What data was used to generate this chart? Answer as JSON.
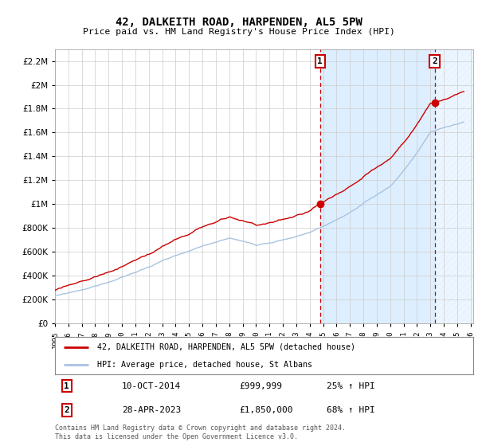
{
  "title": "42, DALKEITH ROAD, HARPENDEN, AL5 5PW",
  "subtitle": "Price paid vs. HM Land Registry's House Price Index (HPI)",
  "ylim": [
    0,
    2300000
  ],
  "yticks": [
    0,
    200000,
    400000,
    600000,
    800000,
    1000000,
    1200000,
    1400000,
    1600000,
    1800000,
    2000000,
    2200000
  ],
  "ytick_labels": [
    "£0",
    "£200K",
    "£400K",
    "£600K",
    "£800K",
    "£1M",
    "£1.2M",
    "£1.4M",
    "£1.6M",
    "£1.8M",
    "£2M",
    "£2.2M"
  ],
  "sale1_date": 2014.78,
  "sale1_price": 999999,
  "sale2_date": 2023.32,
  "sale2_price": 1850000,
  "hpi_color": "#a8c4e0",
  "sale_color": "#cc0000",
  "bg_color": "#ffffff",
  "shade_color": "#ddeeff",
  "legend_line1": "42, DALKEITH ROAD, HARPENDEN, AL5 5PW (detached house)",
  "legend_line2": "HPI: Average price, detached house, St Albans",
  "ann1_date": "10-OCT-2014",
  "ann1_price": "£999,999",
  "ann1_pct": "25% ↑ HPI",
  "ann2_date": "28-APR-2023",
  "ann2_price": "£1,850,000",
  "ann2_pct": "68% ↑ HPI",
  "footer": "Contains HM Land Registry data © Crown copyright and database right 2024.\nThis data is licensed under the Open Government Licence v3.0.",
  "grid_color": "#cccccc",
  "dashed_line_color": "#cc0000",
  "hatch_color": "#b0c8e0"
}
